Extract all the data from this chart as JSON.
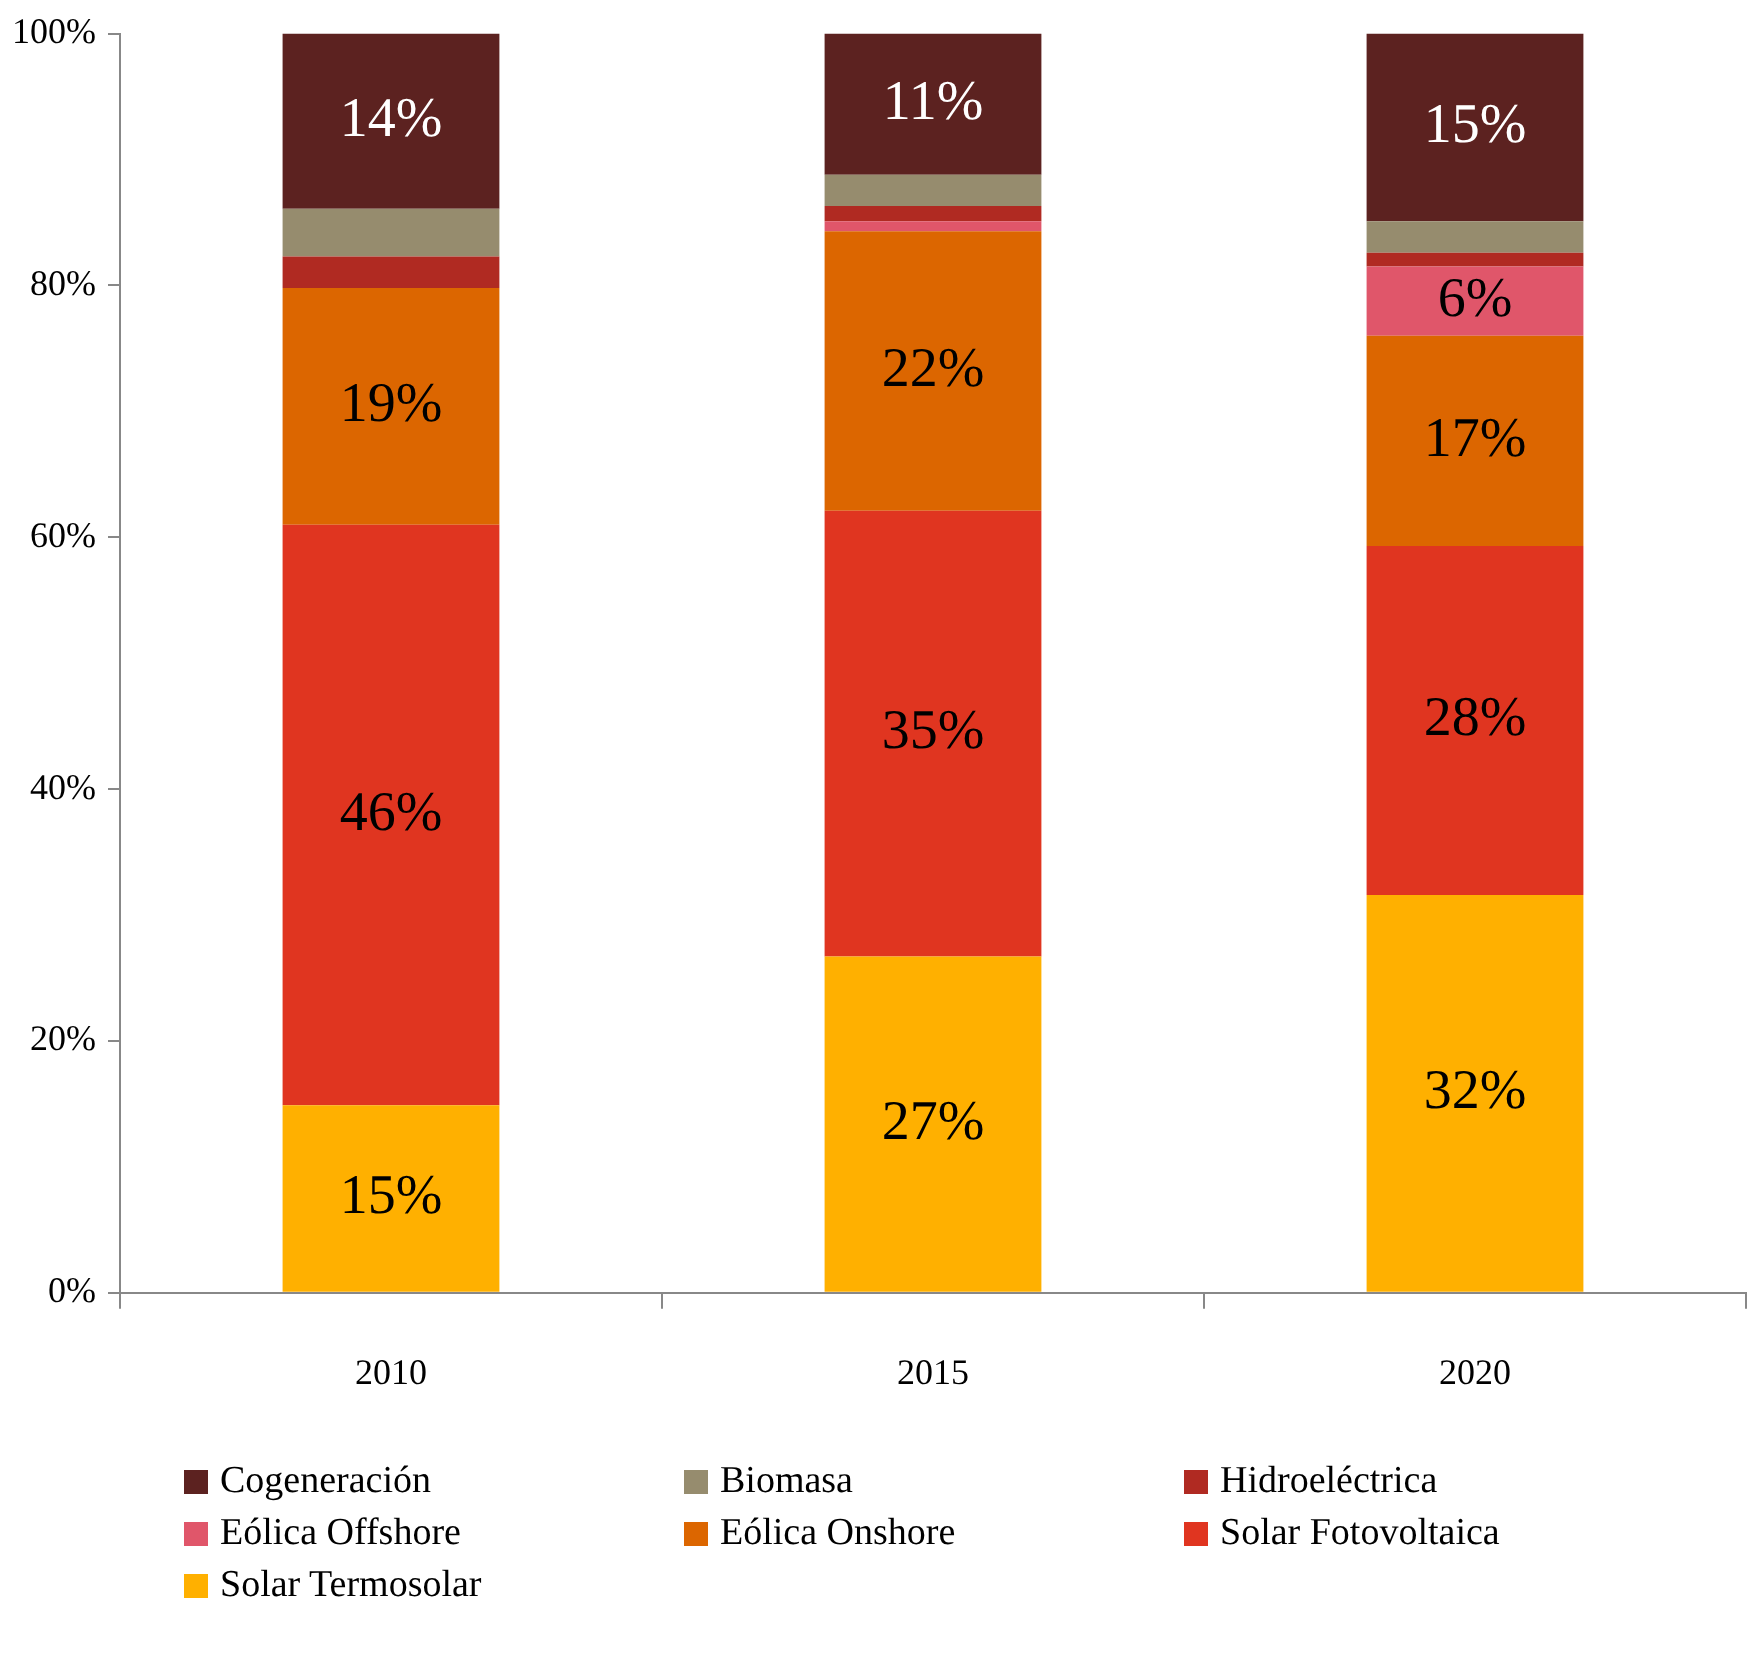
{
  "chart_data": {
    "type": "bar",
    "stacked": true,
    "categories": [
      "2010",
      "2015",
      "2020"
    ],
    "series": [
      {
        "name": "Solar Termosolar",
        "color": "#ffb000",
        "values": [
          14.9,
          26.7,
          31.6
        ],
        "value_labels": [
          "15%",
          "27%",
          "32%"
        ]
      },
      {
        "name": "Solar Fotovoltaica",
        "color": "#e03520",
        "values": [
          46.1,
          35.4,
          27.7
        ],
        "value_labels": [
          "46%",
          "35%",
          "28%"
        ]
      },
      {
        "name": "Eólica Onshore",
        "color": "#dc6600",
        "values": [
          18.8,
          22.2,
          16.7
        ],
        "value_labels": [
          "19%",
          "22%",
          "17%"
        ]
      },
      {
        "name": "Eólica Offshore",
        "color": "#e0566a",
        "values": [
          0,
          0.8,
          5.5
        ],
        "value_labels": [
          null,
          null,
          "6%"
        ]
      },
      {
        "name": "Hidroeléctrica",
        "color": "#b02a22",
        "values": [
          2.5,
          1.2,
          1.1
        ],
        "value_labels": [
          null,
          null,
          null
        ]
      },
      {
        "name": "Biomasa",
        "color": "#968c6e",
        "values": [
          3.8,
          2.5,
          2.5
        ],
        "value_labels": [
          null,
          null,
          null
        ]
      },
      {
        "name": "Cogeneración",
        "color": "#5c2220",
        "values": [
          13.9,
          11.2,
          14.9
        ],
        "value_labels": [
          "14%",
          "11%",
          "15%"
        ]
      }
    ],
    "ylim": [
      0,
      100
    ],
    "yticks": [
      {
        "value": 0,
        "label": "0%"
      },
      {
        "value": 20,
        "label": "20%"
      },
      {
        "value": 40,
        "label": "40%"
      },
      {
        "value": 60,
        "label": "60%"
      },
      {
        "value": 80,
        "label": "80%"
      },
      {
        "value": 100,
        "label": "100%"
      }
    ],
    "grid": false,
    "legend": "bottom"
  }
}
